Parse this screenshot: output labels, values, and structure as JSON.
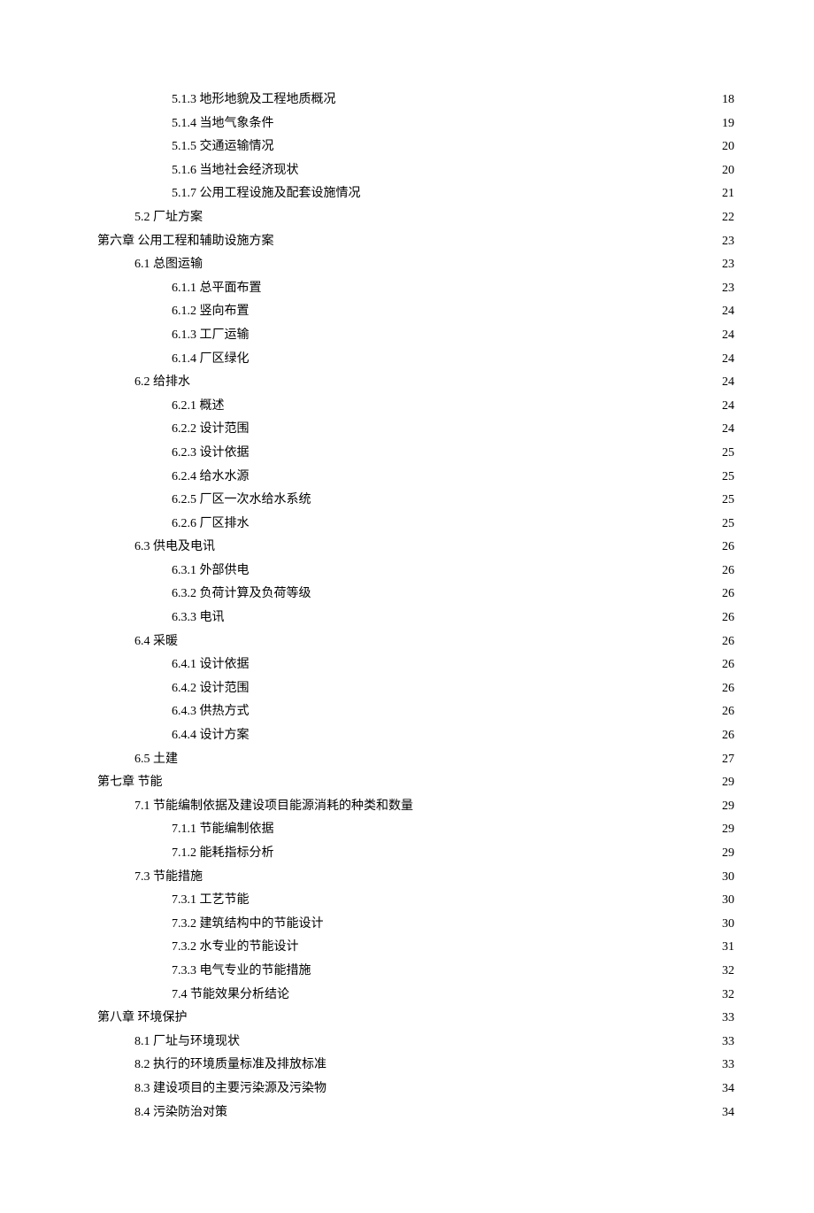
{
  "document_style": {
    "background_color": "#ffffff",
    "text_color": "#000000",
    "font_family": "SimSun",
    "font_size_pt": 10.5,
    "line_height": 1.9,
    "leader_char": "."
  },
  "toc": [
    {
      "indent": 2,
      "label": "5.1.3 地形地貌及工程地质概况",
      "page": "18"
    },
    {
      "indent": 2,
      "label": "5.1.4 当地气象条件",
      "page": "19"
    },
    {
      "indent": 2,
      "label": "5.1.5 交通运输情况",
      "page": "20"
    },
    {
      "indent": 2,
      "label": "5.1.6 当地社会经济现状",
      "page": "20"
    },
    {
      "indent": 2,
      "label": "5.1.7 公用工程设施及配套设施情况",
      "page": "21"
    },
    {
      "indent": 1,
      "label": "5.2 厂址方案",
      "page": "22"
    },
    {
      "indent": 0,
      "label": "第六章 公用工程和辅助设施方案",
      "page": "23"
    },
    {
      "indent": 1,
      "label": "6.1 总图运输",
      "page": "23"
    },
    {
      "indent": 2,
      "label": "6.1.1 总平面布置",
      "page": "23"
    },
    {
      "indent": 2,
      "label": "6.1.2 竖向布置",
      "page": "24"
    },
    {
      "indent": 2,
      "label": "6.1.3 工厂运输",
      "page": "24"
    },
    {
      "indent": 2,
      "label": "6.1.4 厂区绿化",
      "page": "24"
    },
    {
      "indent": 1,
      "label": "6.2 给排水",
      "page": "24"
    },
    {
      "indent": 2,
      "label": "6.2.1 概述",
      "page": "24"
    },
    {
      "indent": 2,
      "label": "6.2.2 设计范围",
      "page": "24"
    },
    {
      "indent": 2,
      "label": "6.2.3 设计依据",
      "page": "25"
    },
    {
      "indent": 2,
      "label": "6.2.4 给水水源",
      "page": "25"
    },
    {
      "indent": 2,
      "label": "6.2.5 厂区一次水给水系统",
      "page": "25"
    },
    {
      "indent": 2,
      "label": "6.2.6  厂区排水",
      "page": "25"
    },
    {
      "indent": 1,
      "label": "6.3 供电及电讯",
      "page": "26"
    },
    {
      "indent": 2,
      "label": "6.3.1 外部供电",
      "page": "26"
    },
    {
      "indent": 2,
      "label": "6.3.2 负荷计算及负荷等级",
      "page": "26"
    },
    {
      "indent": 2,
      "label": "6.3.3 电讯",
      "page": "26"
    },
    {
      "indent": 1,
      "label": "6.4 采暖",
      "page": "26"
    },
    {
      "indent": 2,
      "label": "6.4.1 设计依据",
      "page": "26"
    },
    {
      "indent": 2,
      "label": "6.4.2 设计范围",
      "page": "26"
    },
    {
      "indent": 2,
      "label": "6.4.3 供热方式",
      "page": "26"
    },
    {
      "indent": 2,
      "label": "6.4.4 设计方案",
      "page": "26"
    },
    {
      "indent": 1,
      "label": "6.5 土建",
      "page": "27"
    },
    {
      "indent": 0,
      "label": "第七章 节能",
      "page": "29"
    },
    {
      "indent": 1,
      "label": "7.1 节能编制依据及建设项目能源消耗的种类和数量",
      "page": "29"
    },
    {
      "indent": 2,
      "label": "7.1.1 节能编制依据",
      "page": "29"
    },
    {
      "indent": 2,
      "label": "7.1.2 能耗指标分析",
      "page": "29"
    },
    {
      "indent": 1,
      "label": "7.3 节能措施",
      "page": "30"
    },
    {
      "indent": 2,
      "label": "7.3.1 工艺节能",
      "page": "30"
    },
    {
      "indent": 2,
      "label": "7.3.2 建筑结构中的节能设计",
      "page": "30"
    },
    {
      "indent": 2,
      "label": "7.3.2 水专业的节能设计",
      "page": "31"
    },
    {
      "indent": 2,
      "label": "7.3.3 电气专业的节能措施",
      "page": "32"
    },
    {
      "indent": 2,
      "label": "7.4 节能效果分析结论",
      "page": "32"
    },
    {
      "indent": 0,
      "label": "第八章 环境保护",
      "page": "33"
    },
    {
      "indent": 1,
      "label": "8.1 厂址与环境现状",
      "page": "33"
    },
    {
      "indent": 1,
      "label": "8.2 执行的环境质量标准及排放标准",
      "page": "33"
    },
    {
      "indent": 1,
      "label": "8.3 建设项目的主要污染源及污染物",
      "page": "34"
    },
    {
      "indent": 1,
      "label": "8.4 污染防治对策",
      "page": "34"
    }
  ]
}
